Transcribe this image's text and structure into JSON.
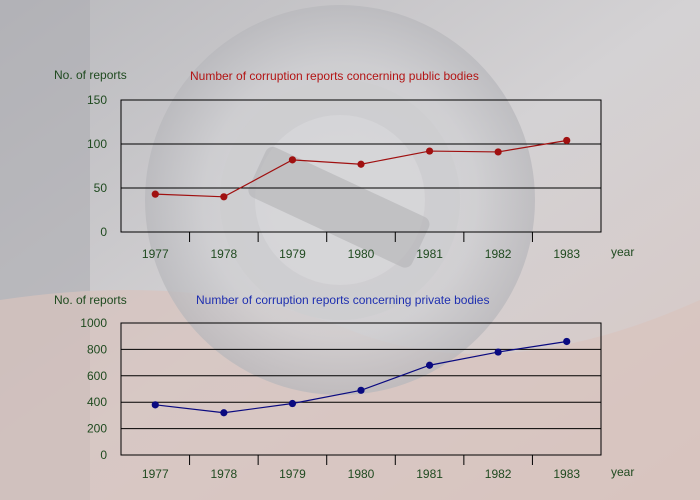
{
  "chart_data": [
    {
      "type": "line",
      "title": "Number of corruption reports concerning public bodies",
      "ylabel": "No. of reports",
      "xlabel": "year",
      "categories": [
        "1977",
        "1978",
        "1979",
        "1980",
        "1981",
        "1982",
        "1983"
      ],
      "series": [
        {
          "values": [
            43,
            40,
            82,
            77,
            92,
            91,
            104
          ]
        }
      ],
      "ylim": [
        0,
        150
      ],
      "yticks": [
        0,
        50,
        100,
        150
      ],
      "grid": true,
      "colors": {
        "series": "#a01010",
        "title": "#b31414",
        "axis_text": "#1f4a1f"
      }
    },
    {
      "type": "line",
      "title": "Number of corruption reports concerning private bodies",
      "ylabel": "No. of reports",
      "xlabel": "year",
      "categories": [
        "1977",
        "1978",
        "1979",
        "1980",
        "1981",
        "1982",
        "1983"
      ],
      "series": [
        {
          "values": [
            380,
            320,
            390,
            490,
            680,
            780,
            860
          ]
        }
      ],
      "ylim": [
        0,
        1000
      ],
      "yticks": [
        0,
        200,
        400,
        600,
        800,
        1000
      ],
      "grid": true,
      "colors": {
        "series": "#0a0a80",
        "title": "#1e2fb0",
        "axis_text": "#1f4a1f"
      }
    }
  ]
}
